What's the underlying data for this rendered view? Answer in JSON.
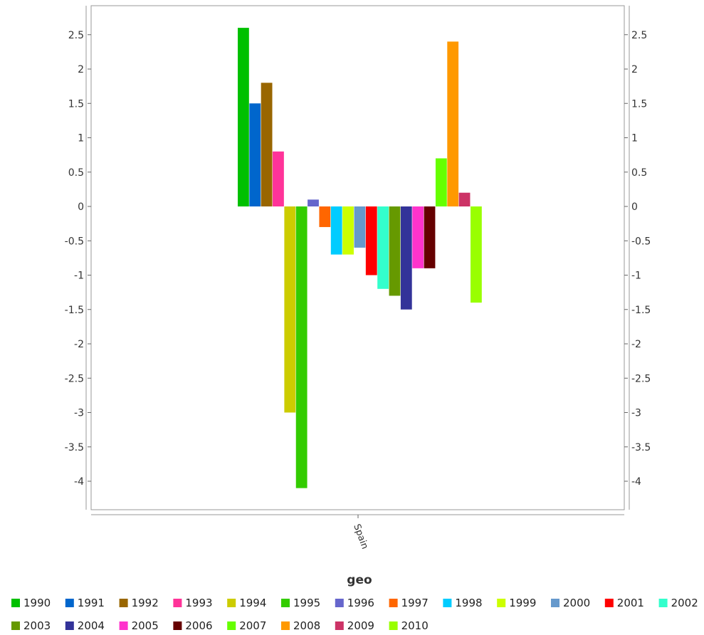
{
  "chart_data": {
    "type": "bar",
    "categories": [
      "Spain"
    ],
    "xlabel": "geo",
    "ylabel": "",
    "ylim": [
      -4.5,
      2.9
    ],
    "yticks": [
      2.5,
      2,
      1.5,
      1,
      0.5,
      0,
      -0.5,
      -1,
      -1.5,
      -2,
      -2.5,
      -3,
      -3.5,
      -4
    ],
    "grid": true,
    "legend_position": "bottom",
    "series": [
      {
        "name": "1990",
        "values": [
          2.6
        ],
        "color": "#00c000"
      },
      {
        "name": "1991",
        "values": [
          1.5
        ],
        "color": "#0066cc"
      },
      {
        "name": "1992",
        "values": [
          1.8
        ],
        "color": "#996600"
      },
      {
        "name": "1993",
        "values": [
          0.8
        ],
        "color": "#ff3399"
      },
      {
        "name": "1994",
        "values": [
          -3.0
        ],
        "color": "#cccc00"
      },
      {
        "name": "1995",
        "values": [
          -4.1
        ],
        "color": "#33cc00"
      },
      {
        "name": "1996",
        "values": [
          0.1
        ],
        "color": "#6666cc"
      },
      {
        "name": "1997",
        "values": [
          -0.3
        ],
        "color": "#ff6600"
      },
      {
        "name": "1998",
        "values": [
          -0.7
        ],
        "color": "#00ccff"
      },
      {
        "name": "1999",
        "values": [
          -0.7
        ],
        "color": "#ccff00"
      },
      {
        "name": "2000",
        "values": [
          -0.6
        ],
        "color": "#6699cc"
      },
      {
        "name": "2001",
        "values": [
          -1.0
        ],
        "color": "#ff0000"
      },
      {
        "name": "2002",
        "values": [
          -1.2
        ],
        "color": "#33ffcc"
      },
      {
        "name": "2003",
        "values": [
          -1.3
        ],
        "color": "#669900"
      },
      {
        "name": "2004",
        "values": [
          -1.5
        ],
        "color": "#333399"
      },
      {
        "name": "2005",
        "values": [
          -0.9
        ],
        "color": "#ff33cc"
      },
      {
        "name": "2006",
        "values": [
          -0.9
        ],
        "color": "#660000"
      },
      {
        "name": "2007",
        "values": [
          0.7
        ],
        "color": "#66ff00"
      },
      {
        "name": "2008",
        "values": [
          2.4
        ],
        "color": "#ff9900"
      },
      {
        "name": "2009",
        "values": [
          0.2
        ],
        "color": "#cc3366"
      },
      {
        "name": "2010",
        "values": [
          -1.4
        ],
        "color": "#99ff00"
      }
    ]
  }
}
